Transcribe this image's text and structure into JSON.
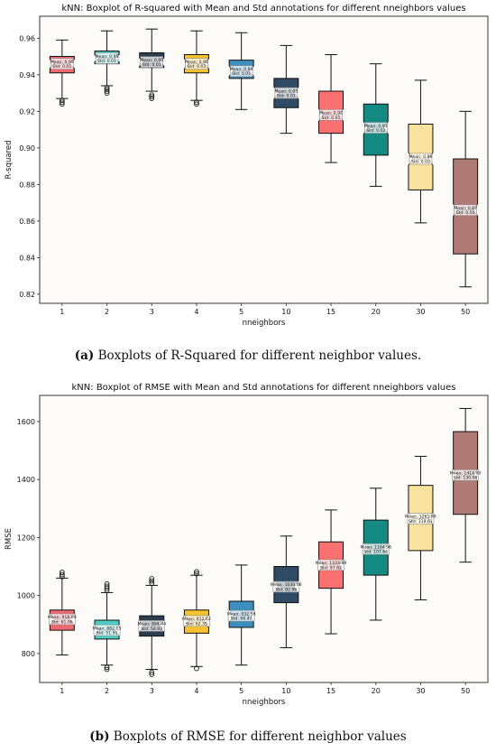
{
  "chart_data": [
    {
      "type": "box",
      "title": "kNN: Boxplot of R-squared with Mean and Std annotations for different nneighbors values",
      "xlabel": "nneighbors",
      "ylabel": "R-squared",
      "ylim": [
        0.815,
        0.972
      ],
      "yticks": [
        0.82,
        0.84,
        0.86,
        0.88,
        0.9,
        0.92,
        0.94,
        0.96
      ],
      "ytick_labels": [
        "0.82",
        "0.84",
        "0.86",
        "0.88",
        "0.90",
        "0.92",
        "0.94",
        "0.96"
      ],
      "grid": false,
      "categories": [
        "1",
        "2",
        "3",
        "4",
        "5",
        "10",
        "15",
        "20",
        "30",
        "50"
      ],
      "colors": [
        "#f0686e",
        "#4ecdc4",
        "#2d3e50",
        "#f6c22f",
        "#3d8fc0",
        "#2f4a63",
        "#fb7070",
        "#148a82",
        "#f9e1a0",
        "#b07b74"
      ],
      "boxes": [
        {
          "whislo": 0.927,
          "q1": 0.941,
          "med": 0.946,
          "q3": 0.95,
          "whishi": 0.959,
          "fliers": [
            0.926,
            0.925,
            0.924
          ]
        },
        {
          "whislo": 0.934,
          "q1": 0.946,
          "med": 0.949,
          "q3": 0.953,
          "whishi": 0.964,
          "fliers": [
            0.933,
            0.932,
            0.931,
            0.93
          ]
        },
        {
          "whislo": 0.931,
          "q1": 0.944,
          "med": 0.947,
          "q3": 0.952,
          "whishi": 0.965,
          "fliers": [
            0.929,
            0.928,
            0.927
          ]
        },
        {
          "whislo": 0.926,
          "q1": 0.941,
          "med": 0.946,
          "q3": 0.951,
          "whishi": 0.964,
          "fliers": [
            0.925,
            0.924
          ]
        },
        {
          "whislo": 0.921,
          "q1": 0.938,
          "med": 0.942,
          "q3": 0.948,
          "whishi": 0.963,
          "fliers": []
        },
        {
          "whislo": 0.908,
          "q1": 0.922,
          "med": 0.93,
          "q3": 0.938,
          "whishi": 0.956,
          "fliers": []
        },
        {
          "whislo": 0.892,
          "q1": 0.908,
          "med": 0.918,
          "q3": 0.931,
          "whishi": 0.951,
          "fliers": []
        },
        {
          "whislo": 0.879,
          "q1": 0.896,
          "med": 0.911,
          "q3": 0.924,
          "whishi": 0.946,
          "fliers": []
        },
        {
          "whislo": 0.859,
          "q1": 0.877,
          "med": 0.894,
          "q3": 0.913,
          "whishi": 0.937,
          "fliers": []
        },
        {
          "whislo": 0.824,
          "q1": 0.842,
          "med": 0.866,
          "q3": 0.894,
          "whishi": 0.92,
          "fliers": []
        }
      ],
      "annotations": [
        {
          "mean_label": "Mean: 0.95",
          "std_label": "Std: 0.01"
        },
        {
          "mean_label": "Mean: 0.95",
          "std_label": "Std: 0.01"
        },
        {
          "mean_label": "Mean: 0.95",
          "std_label": "Std: 0.01"
        },
        {
          "mean_label": "Mean: 0.95",
          "std_label": "Std: 0.01"
        },
        {
          "mean_label": "Mean: 0.94",
          "std_label": "Std: 0.01"
        },
        {
          "mean_label": "Mean: 0.93",
          "std_label": "Std: 0.01"
        },
        {
          "mean_label": "Mean: 0.92",
          "std_label": "Std: 0.01"
        },
        {
          "mean_label": "Mean: 0.91",
          "std_label": "Std: 0.02"
        },
        {
          "mean_label": "Mean: 0.89",
          "std_label": "Std: 0.02"
        },
        {
          "mean_label": "Mean: 0.87",
          "std_label": "Std: 0.02"
        }
      ]
    },
    {
      "type": "box",
      "title": "kNN: Boxplot of RMSE with Mean and Std annotations for different nneighbors values",
      "xlabel": "nneighbors",
      "ylabel": "RMSE",
      "ylim": [
        700,
        1690
      ],
      "yticks": [
        800,
        1000,
        1200,
        1400,
        1600
      ],
      "ytick_labels": [
        "800",
        "1000",
        "1200",
        "1400",
        "1600"
      ],
      "grid": false,
      "categories": [
        "1",
        "2",
        "3",
        "4",
        "5",
        "10",
        "15",
        "20",
        "30",
        "50"
      ],
      "colors": [
        "#f0686e",
        "#4ecdc4",
        "#2d3e50",
        "#f6c22f",
        "#3d8fc0",
        "#2f4a63",
        "#fb7070",
        "#148a82",
        "#f9e1a0",
        "#b07b74"
      ],
      "boxes": [
        {
          "whislo": 795,
          "q1": 880,
          "med": 918,
          "q3": 950,
          "whishi": 1060,
          "fliers": [
            1065,
            1072,
            1080
          ]
        },
        {
          "whislo": 760,
          "q1": 850,
          "med": 880,
          "q3": 915,
          "whishi": 1010,
          "fliers": [
            752,
            745,
            1018,
            1025,
            1032,
            1040
          ]
        },
        {
          "whislo": 745,
          "q1": 860,
          "med": 895,
          "q3": 930,
          "whishi": 1035,
          "fliers": [
            735,
            728,
            1042,
            1050,
            1058
          ]
        },
        {
          "whislo": 755,
          "q1": 870,
          "med": 912,
          "q3": 950,
          "whishi": 1070,
          "fliers": [
            748,
            1075,
            1082
          ]
        },
        {
          "whislo": 760,
          "q1": 890,
          "med": 930,
          "q3": 980,
          "whishi": 1105,
          "fliers": []
        },
        {
          "whislo": 820,
          "q1": 975,
          "med": 1030,
          "q3": 1100,
          "whishi": 1205,
          "fliers": []
        },
        {
          "whislo": 868,
          "q1": 1025,
          "med": 1105,
          "q3": 1185,
          "whishi": 1295,
          "fliers": []
        },
        {
          "whislo": 915,
          "q1": 1070,
          "med": 1160,
          "q3": 1260,
          "whishi": 1370,
          "fliers": []
        },
        {
          "whislo": 985,
          "q1": 1155,
          "med": 1265,
          "q3": 1380,
          "whishi": 1480,
          "fliers": []
        },
        {
          "whislo": 1115,
          "q1": 1280,
          "med": 1415,
          "q3": 1565,
          "whishi": 1645,
          "fliers": []
        }
      ],
      "annotations": [
        {
          "mean_label": "Mean: 918.09",
          "std_label": "Std: 61.06"
        },
        {
          "mean_label": "Mean: 882.15",
          "std_label": "Std: 51.91"
        },
        {
          "mean_label": "Mean: 894.44",
          "std_label": "Std: 54.92"
        },
        {
          "mean_label": "Mean: 912.62",
          "std_label": "Std: 62.35"
        },
        {
          "mean_label": "Mean: 932.58",
          "std_label": "Std: 66.47"
        },
        {
          "mean_label": "Mean: 1030.06",
          "std_label": "Std: 82.96"
        },
        {
          "mean_label": "Mean: 1104.89",
          "std_label": "Std: 97.82"
        },
        {
          "mean_label": "Mean: 1164.96",
          "std_label": "Std: 107.64"
        },
        {
          "mean_label": "Mean: 1261.89",
          "std_label": "Std: 119.61"
        },
        {
          "mean_label": "Mean: 1414.90",
          "std_label": "Std: 130.98"
        }
      ]
    }
  ],
  "captions": [
    {
      "label": "(a)",
      "text": "Boxplots of R-Squared for different neighbor values."
    },
    {
      "label": "(b)",
      "text": "Boxplots of RMSE for different neighbor values"
    }
  ]
}
